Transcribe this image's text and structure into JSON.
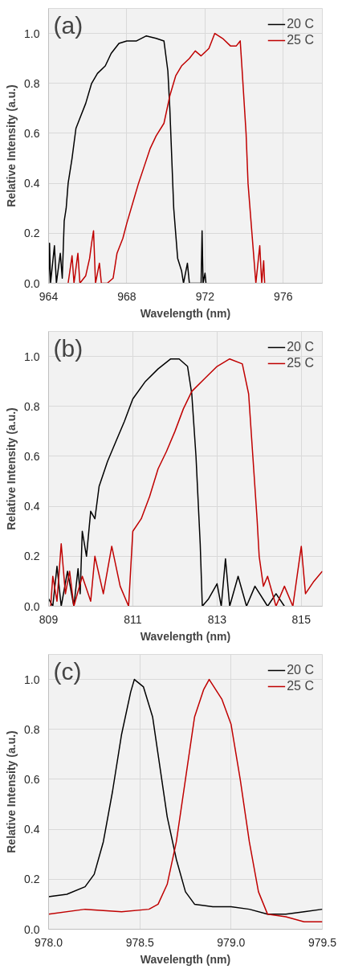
{
  "chart_data": [
    {
      "type": "line",
      "xlabel": "Wavelength (nm)",
      "ylabel": "Relative Intensity (a.u.)",
      "annotations": [
        "(a)"
      ],
      "xlim": [
        964,
        978
      ],
      "xticks": [
        964,
        968,
        972,
        976
      ],
      "ylim": [
        0,
        1.1
      ],
      "yticks": [
        {
          "value": 0,
          "label": "0.0"
        },
        {
          "value": 0.2,
          "label": "0.2"
        },
        {
          "value": 0.4,
          "label": "0.4"
        },
        {
          "value": 0.6,
          "label": "0.6"
        },
        {
          "value": 0.8,
          "label": "0.8"
        },
        {
          "value": 1,
          "label": "1.0"
        }
      ],
      "grid": true,
      "legend": "top right",
      "series": [
        {
          "name": "20 C",
          "color": "#000000",
          "x": [
            964.0,
            964.05,
            964.1,
            964.3,
            964.4,
            964.6,
            964.7,
            964.8,
            964.9,
            965.0,
            965.2,
            965.4,
            965.6,
            965.9,
            966.2,
            966.5,
            966.9,
            967.2,
            967.6,
            968.0,
            968.5,
            969.0,
            969.5,
            969.9,
            970.1,
            970.2,
            970.3,
            970.4,
            970.5,
            970.6,
            970.8,
            970.9,
            971.1,
            971.2,
            971.8,
            971.85,
            971.9,
            972.0,
            972.05
          ],
          "values": [
            0.0,
            0.16,
            0.0,
            0.15,
            0.0,
            0.12,
            0.02,
            0.25,
            0.3,
            0.4,
            0.5,
            0.62,
            0.66,
            0.72,
            0.8,
            0.84,
            0.87,
            0.92,
            0.96,
            0.97,
            0.97,
            0.99,
            0.98,
            0.97,
            0.85,
            0.7,
            0.5,
            0.3,
            0.2,
            0.1,
            0.05,
            0.0,
            0.08,
            0.0,
            0.0,
            0.21,
            0.0,
            0.04,
            0.0
          ]
        },
        {
          "name": "25 C",
          "color": "#c00000",
          "x": [
            965.0,
            965.2,
            965.3,
            965.5,
            965.6,
            965.9,
            966.1,
            966.2,
            966.3,
            966.4,
            966.6,
            966.7,
            967.0,
            967.3,
            967.5,
            967.8,
            968.0,
            968.3,
            968.6,
            968.9,
            969.2,
            969.5,
            969.9,
            970.2,
            970.5,
            970.8,
            971.2,
            971.5,
            971.8,
            972.2,
            972.5,
            972.9,
            973.3,
            973.6,
            973.8,
            973.9,
            974.1,
            974.2,
            974.4,
            974.5,
            974.6,
            974.8,
            974.9,
            975.0,
            975.05
          ],
          "values": [
            0.0,
            0.11,
            0.0,
            0.12,
            0.0,
            0.03,
            0.1,
            0.16,
            0.21,
            0.0,
            0.08,
            0.0,
            0.0,
            0.02,
            0.12,
            0.18,
            0.24,
            0.32,
            0.4,
            0.47,
            0.54,
            0.59,
            0.64,
            0.75,
            0.83,
            0.87,
            0.9,
            0.93,
            0.91,
            0.94,
            1.0,
            0.98,
            0.95,
            0.95,
            0.97,
            0.85,
            0.6,
            0.4,
            0.2,
            0.1,
            0.0,
            0.15,
            0.0,
            0.09,
            0.0
          ]
        }
      ]
    },
    {
      "type": "line",
      "xlabel": "Wavelength (nm)",
      "ylabel": "Relative Intensity (a.u.)",
      "annotations": [
        "(b)"
      ],
      "xlim": [
        809,
        815.5
      ],
      "xticks": [
        809,
        811,
        813,
        815
      ],
      "ylim": [
        0,
        1.1
      ],
      "yticks": [
        {
          "value": 0,
          "label": "0.0"
        },
        {
          "value": 0.2,
          "label": "0.2"
        },
        {
          "value": 0.4,
          "label": "0.4"
        },
        {
          "value": 0.6,
          "label": "0.6"
        },
        {
          "value": 0.8,
          "label": "0.8"
        },
        {
          "value": 1,
          "label": "1.0"
        }
      ],
      "grid": true,
      "legend": "top right",
      "series": [
        {
          "name": "20 C",
          "color": "#000000",
          "x": [
            809.0,
            809.1,
            809.2,
            809.3,
            809.45,
            809.6,
            809.7,
            809.75,
            809.8,
            809.9,
            810.0,
            810.1,
            810.2,
            810.4,
            810.6,
            810.8,
            811.0,
            811.3,
            811.6,
            811.9,
            812.1,
            812.3,
            812.4,
            812.5,
            812.6,
            812.65,
            812.8,
            813.0,
            813.1,
            813.2,
            813.3,
            813.5,
            813.7,
            813.9,
            814.2,
            814.4,
            814.6
          ],
          "values": [
            0.03,
            0.0,
            0.16,
            0.0,
            0.14,
            0.0,
            0.15,
            0.05,
            0.3,
            0.2,
            0.38,
            0.35,
            0.48,
            0.58,
            0.66,
            0.74,
            0.83,
            0.9,
            0.95,
            0.99,
            0.99,
            0.96,
            0.85,
            0.6,
            0.25,
            0.0,
            0.03,
            0.09,
            0.0,
            0.19,
            0.0,
            0.12,
            0.0,
            0.08,
            0.0,
            0.05,
            0.0
          ]
        },
        {
          "name": "25 C",
          "color": "#c00000",
          "x": [
            809.05,
            809.1,
            809.2,
            809.3,
            809.4,
            809.5,
            809.6,
            809.8,
            810.0,
            810.1,
            810.3,
            810.5,
            810.7,
            810.9,
            811.0,
            811.2,
            811.4,
            811.6,
            811.8,
            812.0,
            812.2,
            812.4,
            812.7,
            813.0,
            813.3,
            813.6,
            813.75,
            813.85,
            813.95,
            814.0,
            814.1,
            814.2,
            814.4,
            814.6,
            814.8,
            815.0,
            815.1,
            815.3,
            815.5
          ],
          "values": [
            0.0,
            0.12,
            0.02,
            0.25,
            0.05,
            0.14,
            0.0,
            0.12,
            0.02,
            0.2,
            0.05,
            0.24,
            0.08,
            0.0,
            0.3,
            0.35,
            0.44,
            0.55,
            0.62,
            0.7,
            0.79,
            0.86,
            0.91,
            0.96,
            0.99,
            0.97,
            0.85,
            0.6,
            0.35,
            0.2,
            0.08,
            0.12,
            0.0,
            0.08,
            0.0,
            0.24,
            0.05,
            0.1,
            0.14
          ]
        }
      ]
    },
    {
      "type": "line",
      "xlabel": "Wavelength (nm)",
      "ylabel": "Relative Intensity (a.u.)",
      "annotations": [
        "(c)"
      ],
      "xlim": [
        978,
        979.5
      ],
      "xticks": [
        {
          "value": 978,
          "label": "978.0"
        },
        978.5,
        {
          "value": 979,
          "label": "979.0"
        },
        979.5
      ],
      "ylim": [
        0,
        1.1
      ],
      "yticks": [
        {
          "value": 0,
          "label": "0.0"
        },
        {
          "value": 0.2,
          "label": "0.2"
        },
        {
          "value": 0.4,
          "label": "0.4"
        },
        {
          "value": 0.6,
          "label": "0.6"
        },
        {
          "value": 0.8,
          "label": "0.8"
        },
        {
          "value": 1,
          "label": "1.0"
        }
      ],
      "grid": true,
      "legend": "top right",
      "series": [
        {
          "name": "20 C",
          "color": "#000000",
          "x": [
            978.0,
            978.1,
            978.2,
            978.25,
            978.3,
            978.35,
            978.4,
            978.45,
            978.47,
            978.52,
            978.57,
            978.6,
            978.65,
            978.7,
            978.75,
            978.8,
            978.9,
            979.0,
            979.1,
            979.2,
            979.3,
            979.4,
            979.5
          ],
          "values": [
            0.13,
            0.14,
            0.17,
            0.22,
            0.35,
            0.55,
            0.78,
            0.95,
            1.0,
            0.97,
            0.85,
            0.7,
            0.45,
            0.28,
            0.15,
            0.1,
            0.09,
            0.09,
            0.08,
            0.06,
            0.06,
            0.07,
            0.08
          ]
        },
        {
          "name": "25 C",
          "color": "#c00000",
          "x": [
            978.0,
            978.2,
            978.4,
            978.55,
            978.6,
            978.65,
            978.7,
            978.75,
            978.8,
            978.85,
            978.88,
            978.95,
            979.0,
            979.05,
            979.1,
            979.15,
            979.2,
            979.3,
            979.4,
            979.5
          ],
          "values": [
            0.06,
            0.08,
            0.07,
            0.08,
            0.1,
            0.18,
            0.35,
            0.6,
            0.85,
            0.96,
            1.0,
            0.92,
            0.82,
            0.6,
            0.35,
            0.15,
            0.06,
            0.05,
            0.03,
            0.03
          ]
        }
      ]
    }
  ]
}
